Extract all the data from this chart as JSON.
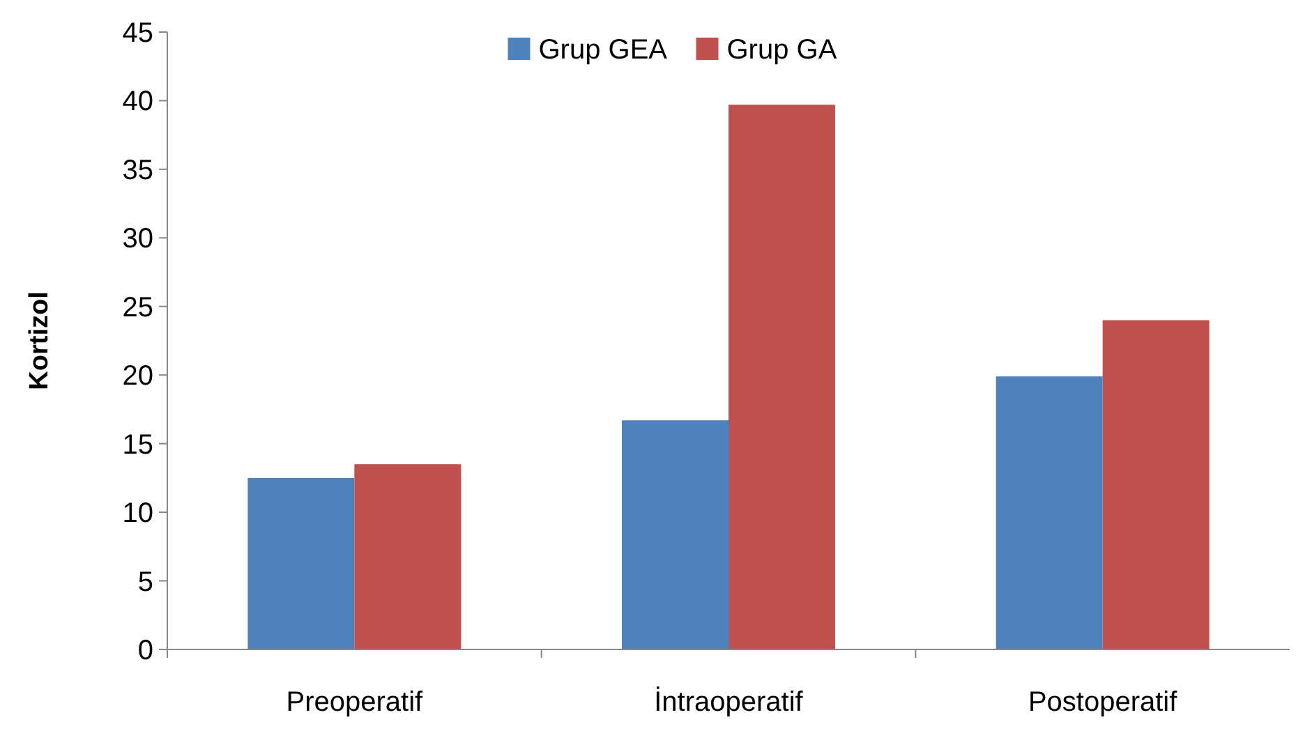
{
  "chart_data": {
    "type": "bar",
    "ylabel": "Kortizol",
    "categories": [
      "Preoperatif",
      "İntraoperatif",
      "Postoperatif"
    ],
    "series": [
      {
        "name": "Grup GEA",
        "color": "#4f81bd",
        "values": [
          12.5,
          16.7,
          19.9
        ]
      },
      {
        "name": "Grup GA",
        "color": "#c0504d",
        "values": [
          13.5,
          39.7,
          24.0
        ]
      }
    ],
    "ylim": [
      0,
      45
    ],
    "yticks": [
      0,
      5,
      10,
      15,
      20,
      25,
      30,
      35,
      40,
      45
    ],
    "grid": false,
    "legend": "top"
  }
}
